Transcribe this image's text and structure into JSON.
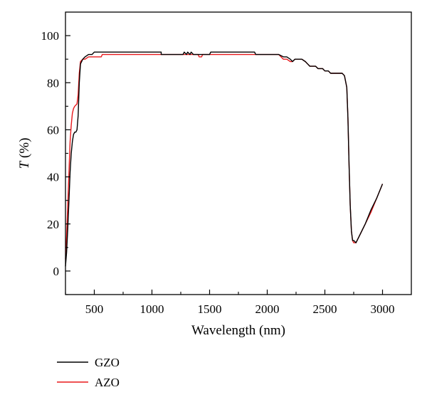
{
  "chart_data": {
    "type": "line",
    "title": "",
    "xlabel": "Wavelength (nm)",
    "ylabel_italic": "T",
    "ylabel_rest": " (%)",
    "xlim": [
      250,
      3250
    ],
    "ylim": [
      -10,
      110
    ],
    "x_ticks": [
      500,
      1000,
      1500,
      2000,
      2500,
      3000
    ],
    "x_tick_labels": [
      "500",
      "1000",
      "1500",
      "2000",
      "2500",
      "3000"
    ],
    "y_ticks": [
      0,
      20,
      40,
      60,
      80,
      100
    ],
    "y_tick_labels": [
      "0",
      "20",
      "40",
      "60",
      "80",
      "100"
    ],
    "grid": false,
    "legend_position": "below",
    "series": [
      {
        "name": "GZO",
        "color": "#000000",
        "points": [
          [
            250,
            2
          ],
          [
            260,
            8
          ],
          [
            270,
            18
          ],
          [
            280,
            30
          ],
          [
            290,
            42
          ],
          [
            300,
            50
          ],
          [
            310,
            55
          ],
          [
            320,
            58
          ],
          [
            330,
            59
          ],
          [
            340,
            59
          ],
          [
            350,
            60
          ],
          [
            360,
            66
          ],
          [
            370,
            80
          ],
          [
            380,
            88
          ],
          [
            400,
            90
          ],
          [
            420,
            91
          ],
          [
            450,
            92
          ],
          [
            480,
            92
          ],
          [
            500,
            93
          ],
          [
            1080,
            93
          ],
          [
            1080,
            92
          ],
          [
            1270,
            92
          ],
          [
            1280,
            93
          ],
          [
            1300,
            92
          ],
          [
            1310,
            93
          ],
          [
            1330,
            92
          ],
          [
            1340,
            93
          ],
          [
            1360,
            92
          ],
          [
            1500,
            92
          ],
          [
            1510,
            93
          ],
          [
            1890,
            93
          ],
          [
            1900,
            92
          ],
          [
            2100,
            92
          ],
          [
            2140,
            91
          ],
          [
            2170,
            91
          ],
          [
            2200,
            90
          ],
          [
            2220,
            89
          ],
          [
            2240,
            90
          ],
          [
            2300,
            90
          ],
          [
            2330,
            89
          ],
          [
            2350,
            88
          ],
          [
            2370,
            87
          ],
          [
            2420,
            87
          ],
          [
            2440,
            86
          ],
          [
            2480,
            86
          ],
          [
            2500,
            85
          ],
          [
            2530,
            85
          ],
          [
            2550,
            84
          ],
          [
            2650,
            84
          ],
          [
            2670,
            83
          ],
          [
            2690,
            78
          ],
          [
            2700,
            65
          ],
          [
            2710,
            45
          ],
          [
            2720,
            28
          ],
          [
            2730,
            17
          ],
          [
            2740,
            13
          ],
          [
            2750,
            13
          ],
          [
            2770,
            12
          ],
          [
            2800,
            15
          ],
          [
            2850,
            20
          ],
          [
            2900,
            26
          ],
          [
            2950,
            31
          ],
          [
            3000,
            37
          ]
        ]
      },
      {
        "name": "AZO",
        "color": "#e8191c",
        "points": [
          [
            250,
            5
          ],
          [
            260,
            15
          ],
          [
            270,
            28
          ],
          [
            280,
            42
          ],
          [
            290,
            55
          ],
          [
            300,
            62
          ],
          [
            310,
            67
          ],
          [
            320,
            69
          ],
          [
            330,
            70
          ],
          [
            350,
            71
          ],
          [
            360,
            75
          ],
          [
            370,
            84
          ],
          [
            380,
            89
          ],
          [
            400,
            90
          ],
          [
            420,
            90
          ],
          [
            450,
            91
          ],
          [
            560,
            91
          ],
          [
            570,
            92
          ],
          [
            1400,
            92
          ],
          [
            1410,
            91
          ],
          [
            1430,
            91
          ],
          [
            1440,
            92
          ],
          [
            2100,
            92
          ],
          [
            2140,
            90
          ],
          [
            2170,
            90
          ],
          [
            2200,
            89
          ],
          [
            2220,
            89
          ],
          [
            2240,
            90
          ],
          [
            2300,
            90
          ],
          [
            2330,
            89
          ],
          [
            2350,
            88
          ],
          [
            2370,
            87
          ],
          [
            2420,
            87
          ],
          [
            2440,
            86
          ],
          [
            2480,
            86
          ],
          [
            2500,
            85
          ],
          [
            2530,
            85
          ],
          [
            2550,
            84
          ],
          [
            2650,
            84
          ],
          [
            2670,
            83
          ],
          [
            2690,
            78
          ],
          [
            2700,
            65
          ],
          [
            2710,
            45
          ],
          [
            2720,
            28
          ],
          [
            2730,
            17
          ],
          [
            2740,
            13
          ],
          [
            2750,
            12
          ],
          [
            2770,
            12
          ],
          [
            2800,
            15
          ],
          [
            2850,
            20
          ],
          [
            2900,
            25
          ],
          [
            2950,
            31
          ],
          [
            3000,
            37
          ]
        ]
      }
    ]
  }
}
